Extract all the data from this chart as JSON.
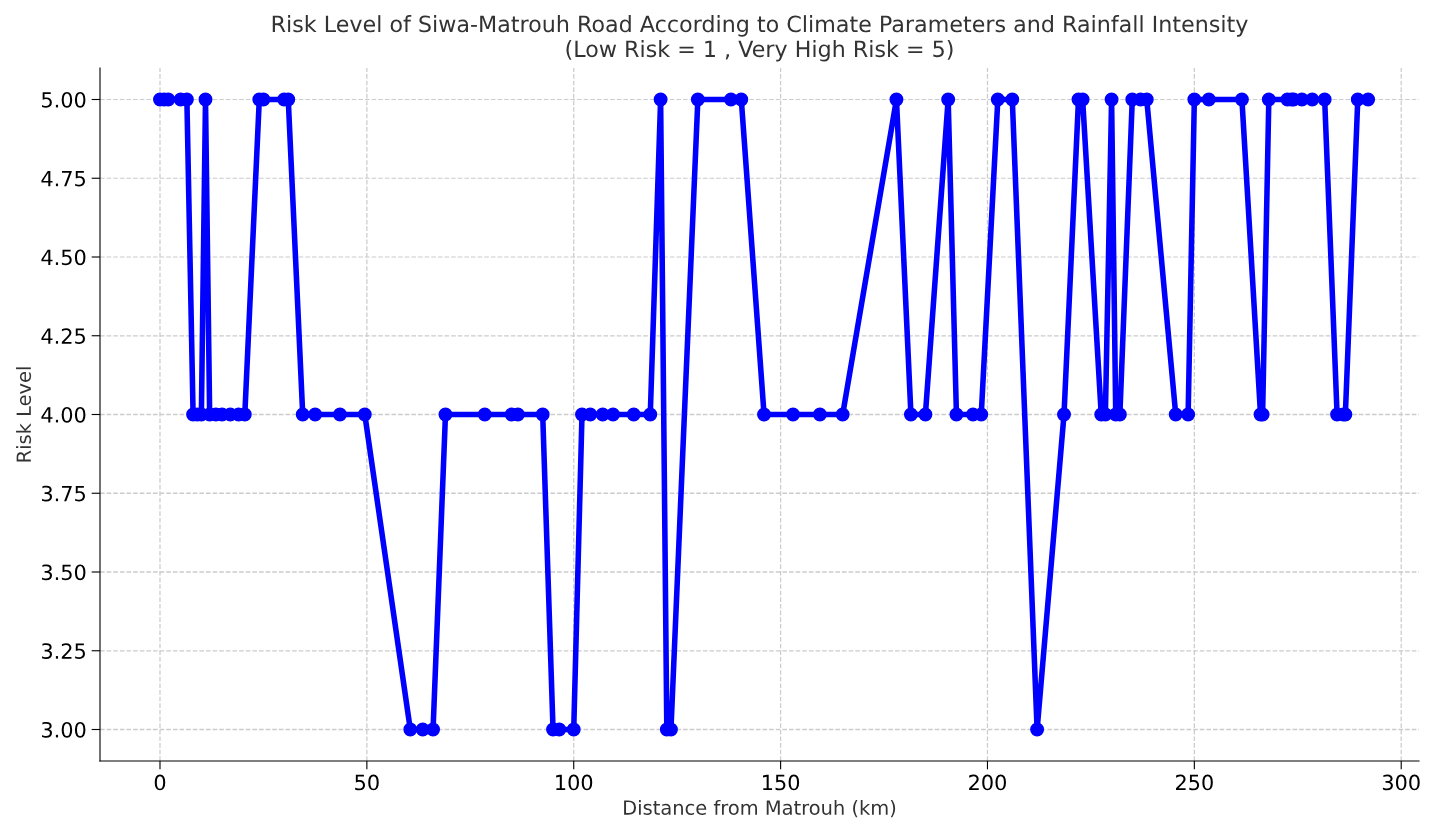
{
  "chart_data": {
    "type": "line",
    "title": "Risk Level of Siwa-Matrouh Road According to Climate Parameters and Rainfall Intensity\n(Low Risk = 1 , Very High Risk = 5)",
    "xlabel": "Distance from Matrouh (km)",
    "ylabel": "Risk Level",
    "x": [
      0,
      1,
      2,
      5,
      6.5,
      8,
      9,
      10,
      11,
      12,
      13.5,
      15,
      17,
      19,
      20.5,
      24,
      25,
      30,
      31,
      34.5,
      37.5,
      43.5,
      49.5,
      60.5,
      63.5,
      66,
      69,
      78.5,
      85,
      86.5,
      92.5,
      95,
      96.5,
      100,
      102,
      104,
      107,
      109.5,
      114.5,
      118.5,
      121,
      122.5,
      123.5,
      130,
      138,
      140.5,
      146,
      153,
      159.5,
      165,
      178,
      181.5,
      185,
      190.5,
      192.5,
      196.5,
      198.5,
      202.5,
      206,
      212,
      218.5,
      222,
      223,
      227.5,
      228.5,
      230,
      231,
      232,
      235,
      237,
      238.5,
      245.5,
      248.5,
      250,
      253.5,
      261.5,
      266,
      266.5,
      268,
      272.5,
      273.5,
      274,
      276,
      278.5,
      281.5,
      284.5,
      286,
      286.5,
      289.5,
      292
    ],
    "series": [
      {
        "color": "#0000ff",
        "values": [
          5,
          5,
          5,
          5,
          5,
          4,
          4,
          4,
          5,
          4,
          4,
          4,
          4,
          4,
          4,
          5,
          5,
          5,
          5,
          4,
          4,
          4,
          4,
          3,
          3,
          3,
          4,
          4,
          4,
          4,
          4,
          3,
          3,
          3,
          4,
          4,
          4,
          4,
          4,
          4,
          5,
          3,
          3,
          5,
          5,
          5,
          4,
          4,
          4,
          4,
          5,
          4,
          4,
          5,
          4,
          4,
          4,
          5,
          5,
          3,
          4,
          5,
          5,
          4,
          4,
          5,
          4,
          4,
          5,
          5,
          5,
          4,
          4,
          5,
          5,
          5,
          4,
          4,
          5,
          5,
          5,
          5,
          5,
          5,
          5,
          4,
          4,
          4,
          5,
          5
        ]
      }
    ],
    "xlim": [
      -14.5,
      304.3
    ],
    "ylim": [
      2.9,
      5.1
    ],
    "xticks": [
      0,
      50,
      100,
      150,
      200,
      250,
      300
    ],
    "yticks": [
      {
        "value": 3,
        "label": "3.00"
      },
      {
        "value": 3.25,
        "label": "3.25"
      },
      {
        "value": 3.5,
        "label": "3.50"
      },
      {
        "value": 3.75,
        "label": "3.75"
      },
      {
        "value": 4,
        "label": "4.00"
      },
      {
        "value": 4.25,
        "label": "4.25"
      },
      {
        "value": 4.5,
        "label": "4.50"
      },
      {
        "value": 4.75,
        "label": "4.75"
      },
      {
        "value": 5,
        "label": "5.00"
      }
    ],
    "grid": true,
    "marker": "circle",
    "line_style": "solid"
  }
}
